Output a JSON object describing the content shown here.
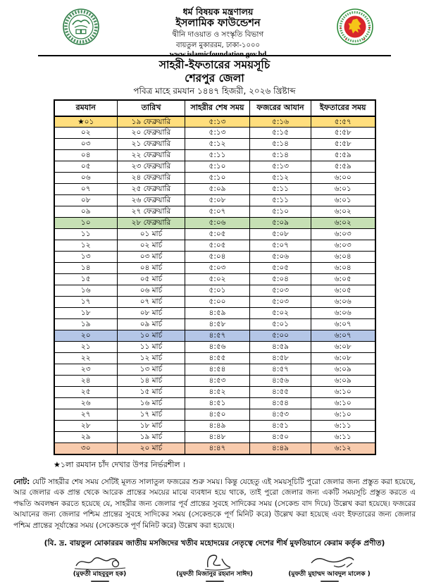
{
  "letterhead": {
    "ministry": "ধর্ম বিষয়ক মন্ত্রণালয়",
    "organization": "ইসলামিক ফাউন্ডেশন",
    "division": "দ্বীনি দাওয়াত ও সংস্কৃতি বিভাগ",
    "address": "বায়তুল মুকাররম, ঢাকা-১০০০",
    "website": "www.islamicfoundation.gov.bd"
  },
  "title": {
    "main": "সাহরী-ইফতারের সময়সূচি",
    "district": "শেরপুর জেলা",
    "subtitle": "পবিত্র মাহে রমযান ১৪৪৭ হিজরী, ২০২৬ খ্রিষ্টাব্দ"
  },
  "table": {
    "columns": [
      "রমযান",
      "তারিখ",
      "সাহরীর শেষ সময়",
      "ফজরের আযান",
      "ইফতারের সময়"
    ],
    "rows": [
      {
        "ramadan": "★০১",
        "date": "১৯ ফেব্রুয়ারি",
        "sehri": "৫:১৩",
        "fajr": "৫:১৬",
        "iftar": "৫:৫৭",
        "highlight": "yellow"
      },
      {
        "ramadan": "০২",
        "date": "২০ ফেব্রুয়ারি",
        "sehri": "৫:১৩",
        "fajr": "৫:১৫",
        "iftar": "৫:৫৮",
        "highlight": ""
      },
      {
        "ramadan": "০৩",
        "date": "২১ ফেব্রুয়ারি",
        "sehri": "৫:১২",
        "fajr": "৫:১৪",
        "iftar": "৫:৫৮",
        "highlight": ""
      },
      {
        "ramadan": "০৪",
        "date": "২২ ফেব্রুয়ারি",
        "sehri": "৫:১১",
        "fajr": "৫:১৪",
        "iftar": "৫:৫৯",
        "highlight": ""
      },
      {
        "ramadan": "০৫",
        "date": "২৩ ফেব্রুয়ারি",
        "sehri": "৫:১০",
        "fajr": "৫:১৩",
        "iftar": "৫:৫৯",
        "highlight": ""
      },
      {
        "ramadan": "০৬",
        "date": "২৪ ফেব্রুয়ারি",
        "sehri": "৫:১০",
        "fajr": "৫:১২",
        "iftar": "৬:০০",
        "highlight": ""
      },
      {
        "ramadan": "০৭",
        "date": "২৫ ফেব্রুয়ারি",
        "sehri": "৫:০৯",
        "fajr": "৫:১১",
        "iftar": "৬:০১",
        "highlight": ""
      },
      {
        "ramadan": "০৮",
        "date": "২৬ ফেব্রুয়ারি",
        "sehri": "৫:০৮",
        "fajr": "৫:১১",
        "iftar": "৬:০১",
        "highlight": ""
      },
      {
        "ramadan": "০৯",
        "date": "২৭ ফেব্রুয়ারি",
        "sehri": "৫:০৭",
        "fajr": "৫:১০",
        "iftar": "৬:০২",
        "highlight": ""
      },
      {
        "ramadan": "১০",
        "date": "২৮ ফেব্রুয়ারি",
        "sehri": "৫:০৬",
        "fajr": "৫:০৯",
        "iftar": "৬:০২",
        "highlight": "green"
      },
      {
        "ramadan": "১১",
        "date": "০১ মার্চ",
        "sehri": "৫:০৫",
        "fajr": "৫:০৮",
        "iftar": "৬:০৩",
        "highlight": ""
      },
      {
        "ramadan": "১২",
        "date": "০২ মার্চ",
        "sehri": "৫:০৫",
        "fajr": "৫:০৭",
        "iftar": "৬:০৩",
        "highlight": ""
      },
      {
        "ramadan": "১৩",
        "date": "০৩ মার্চ",
        "sehri": "৫:০৪",
        "fajr": "৫:০৬",
        "iftar": "৬:০৪",
        "highlight": ""
      },
      {
        "ramadan": "১৪",
        "date": "০৪ মার্চ",
        "sehri": "৫:০৩",
        "fajr": "৫:০৫",
        "iftar": "৬:০৪",
        "highlight": ""
      },
      {
        "ramadan": "১৫",
        "date": "০৫ মার্চ",
        "sehri": "৫:০২",
        "fajr": "৫:০৪",
        "iftar": "৬:০৫",
        "highlight": ""
      },
      {
        "ramadan": "১৬",
        "date": "০৬ মার্চ",
        "sehri": "৫:০১",
        "fajr": "৫:০৩",
        "iftar": "৬:০৫",
        "highlight": ""
      },
      {
        "ramadan": "১৭",
        "date": "০৭ মার্চ",
        "sehri": "৫:০০",
        "fajr": "৫:০৩",
        "iftar": "৬:০৬",
        "highlight": ""
      },
      {
        "ramadan": "১৮",
        "date": "০৮ মার্চ",
        "sehri": "৪:৫৯",
        "fajr": "৫:০২",
        "iftar": "৬:০৬",
        "highlight": ""
      },
      {
        "ramadan": "১৯",
        "date": "০৯ মার্চ",
        "sehri": "৪:৫৮",
        "fajr": "৫:০১",
        "iftar": "৬:০৭",
        "highlight": ""
      },
      {
        "ramadan": "২০",
        "date": "১০ মার্চ",
        "sehri": "৪:৫৭",
        "fajr": "৫:০০",
        "iftar": "৬:০৭",
        "highlight": "blue"
      },
      {
        "ramadan": "২১",
        "date": "১১ মার্চ",
        "sehri": "৪:৫৬",
        "fajr": "৪:৫৯",
        "iftar": "৬:০৮",
        "highlight": ""
      },
      {
        "ramadan": "২২",
        "date": "১২ মার্চ",
        "sehri": "৪:৫৫",
        "fajr": "৪:৫৮",
        "iftar": "৬:০৮",
        "highlight": ""
      },
      {
        "ramadan": "২৩",
        "date": "১৩ মার্চ",
        "sehri": "৪:৫৪",
        "fajr": "৪:৫৭",
        "iftar": "৬:০৯",
        "highlight": ""
      },
      {
        "ramadan": "২৪",
        "date": "১৪ মার্চ",
        "sehri": "৪:৫৩",
        "fajr": "৪:৫৬",
        "iftar": "৬:০৯",
        "highlight": ""
      },
      {
        "ramadan": "২৫",
        "date": "১৫ মার্চ",
        "sehri": "৪:৫২",
        "fajr": "৪:৫৫",
        "iftar": "৬:১০",
        "highlight": ""
      },
      {
        "ramadan": "২৬",
        "date": "১৬ মার্চ",
        "sehri": "৪:৫১",
        "fajr": "৪:৫৪",
        "iftar": "৬:১০",
        "highlight": ""
      },
      {
        "ramadan": "২৭",
        "date": "১৭ মার্চ",
        "sehri": "৪:৫০",
        "fajr": "৪:৫৩",
        "iftar": "৬:১০",
        "highlight": ""
      },
      {
        "ramadan": "২৮",
        "date": "১৮ মার্চ",
        "sehri": "৪:৪৯",
        "fajr": "৪:৫১",
        "iftar": "৬:১১",
        "highlight": ""
      },
      {
        "ramadan": "২৯",
        "date": "১৯ মার্চ",
        "sehri": "৪:৪৮",
        "fajr": "৪:৫০",
        "iftar": "৬:১১",
        "highlight": ""
      },
      {
        "ramadan": "৩০",
        "date": "২০ মার্চ",
        "sehri": "৪:৪৭",
        "fajr": "৪:৪৯",
        "iftar": "৬:১২",
        "highlight": "orange"
      }
    ]
  },
  "colors": {
    "yellow": "#FFDE7D",
    "green": "#C6E0B4",
    "blue": "#B4C6E7",
    "orange": "#F8CBAD",
    "logo_green": "#2E7D46",
    "seal_red": "#D8262C",
    "seal_yellow": "#F5C518"
  },
  "footnote": "★১লা রমযান চাঁদ দেখার উপর নির্ভরশীল ।",
  "note": {
    "label": "নোট:",
    "body": " যেটি সাহরীর শেষ সময় সেটিই মূলত সালাতুল ফজরের শুরু সময়। কিন্তু যেহেতু এই সময়সূচিটি পুরো জেলার জন্য প্রস্তুত করা হয়েছে, আর জেলার এক প্রান্ত থেকে আরেক প্রান্তের সময়ের মাঝে ব্যবধান হয়ে থাকে, তাই পুরো জেলার জন্য একটি সময়সূচি প্রস্তুত করতে এ পদ্ধতি অবলম্বন করতে হয়েছে যে, সাহরীর জন্য জেলার পূর্ব প্রান্তের সুবহে সাদিকের সময় (সেকেন্ড বাদ দিয়ে) উল্লেখ করা হয়েছে। ফজরের আযানের জন্য জেলার পশ্চিম প্রান্তের সুবহে সাদিকের সময় (সেকেন্ডকে পূর্ণ মিনিট করে) উল্লেখ করা হয়েছে এবং ইফতারের জন্য জেলার পশ্চিম প্রান্তের সূর্যাস্তের সময় (সেকেন্ডকে পূর্ণ মিনিট করে) উল্লেখ করা হয়েছে।"
  },
  "attribution": "(বি. দ্র. বায়তুল মোকাররম জাতীয় মসজিদের খতীব মহোদয়ের নেতৃত্বে দেশের শীর্ষ মুফতিয়ানে কেরাম কর্তৃক প্রণীত)",
  "signatories": [
    {
      "name": "(মুফতী মাহবুবুল হক)"
    },
    {
      "name": "(মুফতী মিজানুর রহমান সাঈদ)"
    },
    {
      "name": "(মুফতী মুহাম্মদ আবদুল মালেক )"
    }
  ]
}
